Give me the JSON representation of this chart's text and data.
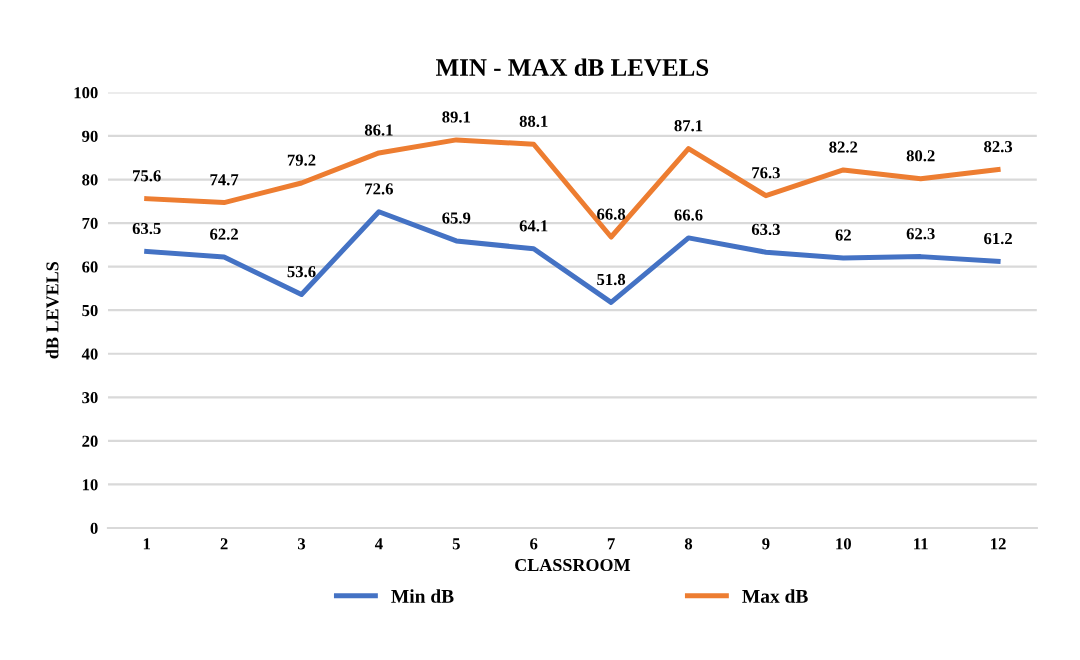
{
  "chart_data": {
    "type": "line",
    "title": "MIN - MAX dB LEVELS",
    "xlabel": "CLASSROOM",
    "ylabel": "dB LEVELS",
    "categories": [
      "1",
      "2",
      "3",
      "4",
      "5",
      "6",
      "7",
      "8",
      "9",
      "10",
      "11",
      "12"
    ],
    "series": [
      {
        "name": "Min dB",
        "color": "#4472c4",
        "values": [
          63.5,
          62.2,
          53.6,
          72.6,
          65.9,
          64.1,
          51.8,
          66.6,
          63.3,
          62,
          62.3,
          61.2
        ]
      },
      {
        "name": "Max dB",
        "color": "#ed7d31",
        "values": [
          75.6,
          74.7,
          79.2,
          86.1,
          89.1,
          88.1,
          66.8,
          87.1,
          76.3,
          82.2,
          80.2,
          82.3
        ]
      }
    ],
    "ylim": [
      0,
      100
    ],
    "yticks": [
      0,
      10,
      20,
      30,
      40,
      50,
      60,
      70,
      80,
      90,
      100
    ],
    "grid": "y",
    "legend": "bottom",
    "data_labels": true
  }
}
